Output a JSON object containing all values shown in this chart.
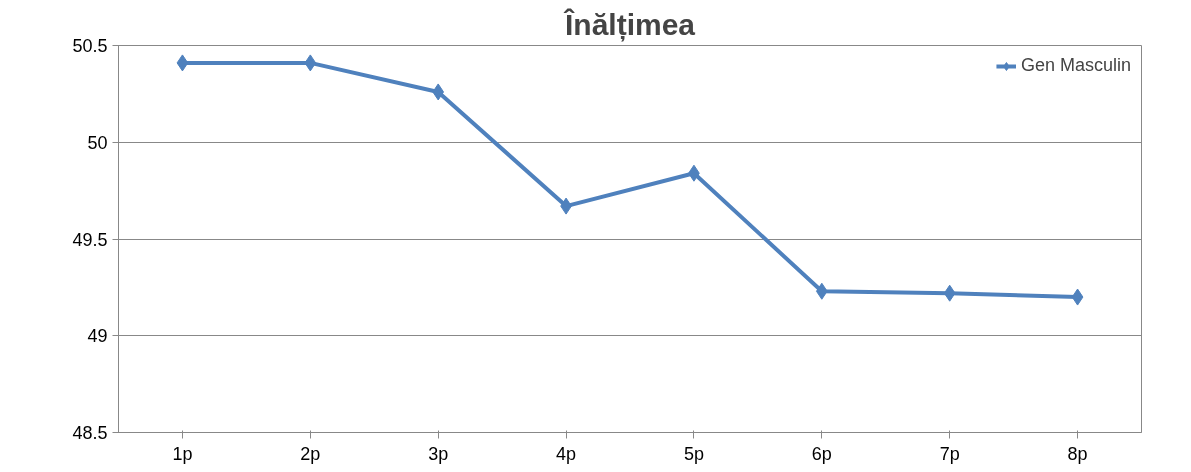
{
  "chart_data": {
    "type": "line",
    "title": "Înălțimea",
    "categories": [
      "1p",
      "2p",
      "3p",
      "4p",
      "5p",
      "6p",
      "7p",
      "8p"
    ],
    "series": [
      {
        "name": "Gen Masculin",
        "color": "#4f81bd",
        "values": [
          50.41,
          50.41,
          50.26,
          49.67,
          49.84,
          49.23,
          49.22,
          49.2
        ]
      }
    ],
    "ylim": [
      48.5,
      50.5
    ],
    "yticks": [
      48.5,
      49,
      49.5,
      50,
      50.5
    ],
    "grid": "y",
    "legend": "top right",
    "marker": "diamond",
    "line_style": "solid"
  }
}
